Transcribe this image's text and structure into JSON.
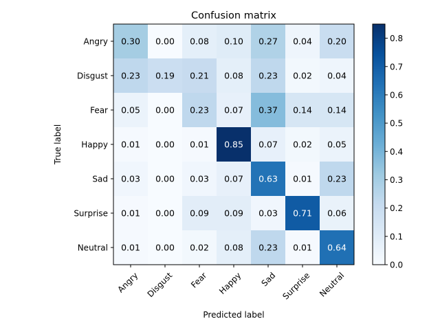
{
  "chart_data": {
    "type": "heatmap",
    "title": "Confusion matrix",
    "xlabel": "Predicted label",
    "ylabel": "True label",
    "x_categories": [
      "Angry",
      "Disgust",
      "Fear",
      "Happy",
      "Sad",
      "Surprise",
      "Neutral"
    ],
    "y_categories": [
      "Angry",
      "Disgust",
      "Fear",
      "Happy",
      "Sad",
      "Surprise",
      "Neutral"
    ],
    "values": [
      [
        0.3,
        0.0,
        0.08,
        0.1,
        0.27,
        0.04,
        0.2
      ],
      [
        0.23,
        0.19,
        0.21,
        0.08,
        0.23,
        0.02,
        0.04
      ],
      [
        0.05,
        0.0,
        0.23,
        0.07,
        0.37,
        0.14,
        0.14
      ],
      [
        0.01,
        0.0,
        0.01,
        0.85,
        0.07,
        0.02,
        0.05
      ],
      [
        0.03,
        0.0,
        0.03,
        0.07,
        0.63,
        0.01,
        0.23
      ],
      [
        0.01,
        0.0,
        0.09,
        0.09,
        0.03,
        0.71,
        0.06
      ],
      [
        0.01,
        0.0,
        0.02,
        0.08,
        0.23,
        0.01,
        0.64
      ]
    ],
    "value_format": "0.00",
    "colormap": "Blues",
    "color_range": [
      0.0,
      0.85
    ],
    "colorbar_ticks": [
      "0.0",
      "0.1",
      "0.2",
      "0.3",
      "0.4",
      "0.5",
      "0.6",
      "0.7",
      "0.8"
    ],
    "colorbar_tick_values": [
      0.0,
      0.1,
      0.2,
      0.3,
      0.4,
      0.5,
      0.6,
      0.7,
      0.8
    ],
    "xtick_rotation_deg": 45,
    "annotation_text_color_threshold": 0.425,
    "grid": false,
    "legend": "colorbar-right"
  }
}
